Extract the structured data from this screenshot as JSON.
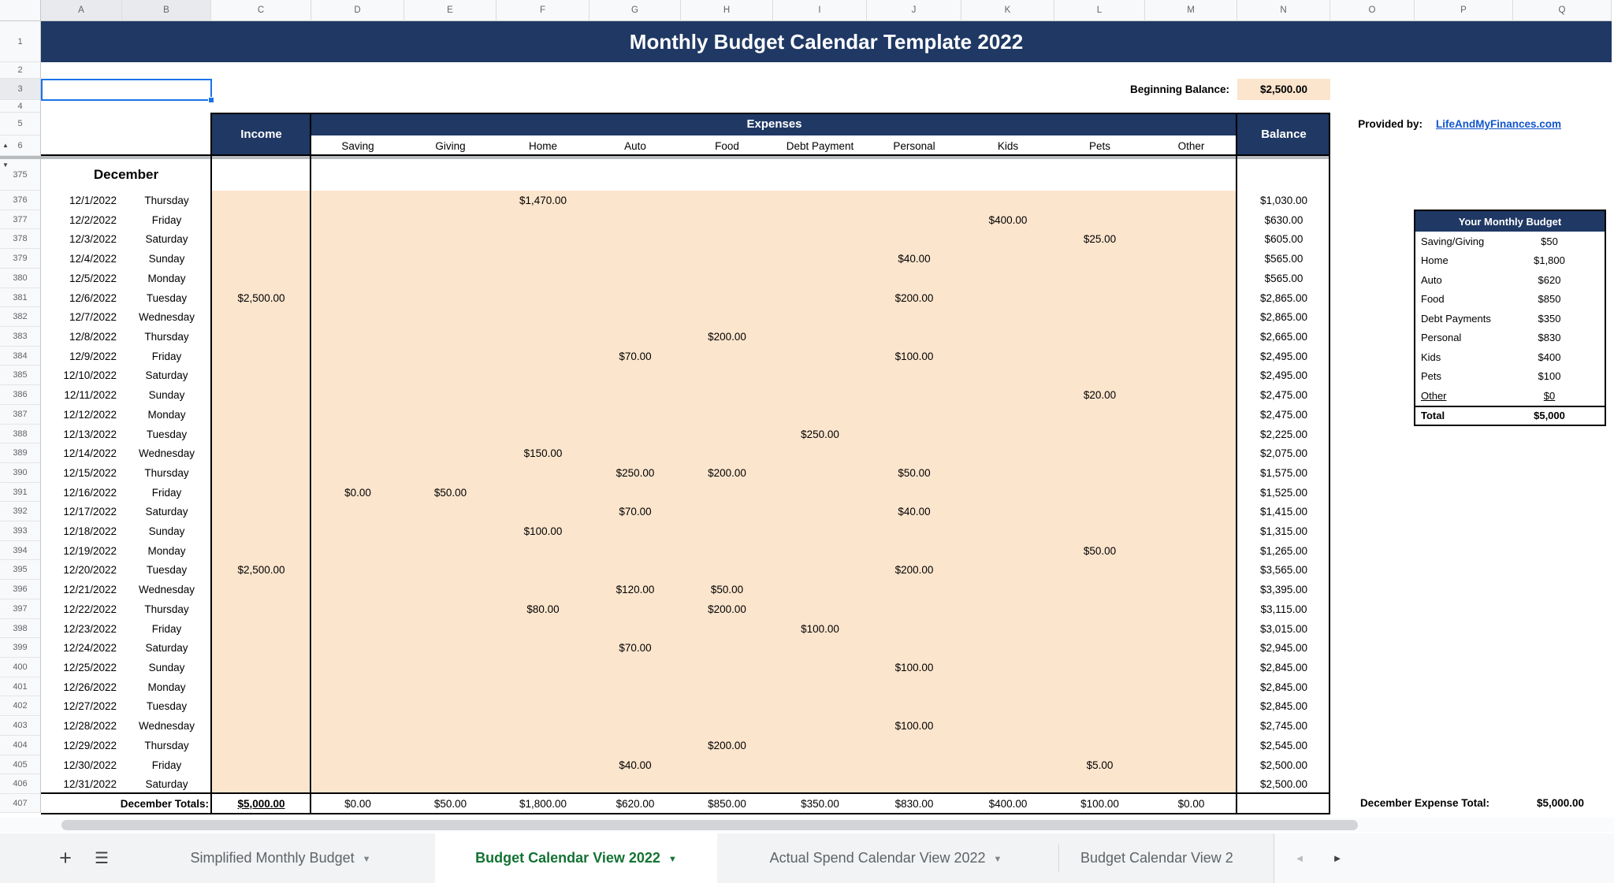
{
  "title": "Monthly Budget Calendar Template 2022",
  "column_letters": [
    "A",
    "B",
    "C",
    "D",
    "E",
    "F",
    "G",
    "H",
    "I",
    "J",
    "K",
    "L",
    "M",
    "N",
    "O",
    "P",
    "Q"
  ],
  "gutter_top_rows": [
    "1",
    "2",
    "3",
    "4",
    "5",
    "6"
  ],
  "month_row_number": "375",
  "totals_row_number": "407",
  "beginning_balance": {
    "label": "Beginning Balance:",
    "value": "$2,500.00"
  },
  "headers": {
    "income": "Income",
    "expenses": "Expenses",
    "balance": "Balance",
    "expense_categories": [
      "Saving",
      "Giving",
      "Home",
      "Auto",
      "Food",
      "Debt Payment",
      "Personal",
      "Kids",
      "Pets",
      "Other"
    ]
  },
  "month_label": "December",
  "data_rows": [
    [
      "376",
      "12/1/2022",
      "Thursday",
      "",
      "",
      "",
      "$1,470.00",
      "",
      "",
      "",
      "",
      "",
      "",
      "",
      "$1,030.00"
    ],
    [
      "377",
      "12/2/2022",
      "Friday",
      "",
      "",
      "",
      "",
      "",
      "",
      "",
      "",
      "$400.00",
      "",
      "",
      "$630.00"
    ],
    [
      "378",
      "12/3/2022",
      "Saturday",
      "",
      "",
      "",
      "",
      "",
      "",
      "",
      "",
      "",
      "$25.00",
      "",
      "$605.00"
    ],
    [
      "379",
      "12/4/2022",
      "Sunday",
      "",
      "",
      "",
      "",
      "",
      "",
      "",
      "$40.00",
      "",
      "",
      "",
      "$565.00"
    ],
    [
      "380",
      "12/5/2022",
      "Monday",
      "",
      "",
      "",
      "",
      "",
      "",
      "",
      "",
      "",
      "",
      "",
      "$565.00"
    ],
    [
      "381",
      "12/6/2022",
      "Tuesday",
      "$2,500.00",
      "",
      "",
      "",
      "",
      "",
      "",
      "$200.00",
      "",
      "",
      "",
      "$2,865.00"
    ],
    [
      "382",
      "12/7/2022",
      "Wednesday",
      "",
      "",
      "",
      "",
      "",
      "",
      "",
      "",
      "",
      "",
      "",
      "$2,865.00"
    ],
    [
      "383",
      "12/8/2022",
      "Thursday",
      "",
      "",
      "",
      "",
      "",
      "$200.00",
      "",
      "",
      "",
      "",
      "",
      "$2,665.00"
    ],
    [
      "384",
      "12/9/2022",
      "Friday",
      "",
      "",
      "",
      "",
      "$70.00",
      "",
      "",
      "$100.00",
      "",
      "",
      "",
      "$2,495.00"
    ],
    [
      "385",
      "12/10/2022",
      "Saturday",
      "",
      "",
      "",
      "",
      "",
      "",
      "",
      "",
      "",
      "",
      "",
      "$2,495.00"
    ],
    [
      "386",
      "12/11/2022",
      "Sunday",
      "",
      "",
      "",
      "",
      "",
      "",
      "",
      "",
      "",
      "$20.00",
      "",
      "$2,475.00"
    ],
    [
      "387",
      "12/12/2022",
      "Monday",
      "",
      "",
      "",
      "",
      "",
      "",
      "",
      "",
      "",
      "",
      "",
      "$2,475.00"
    ],
    [
      "388",
      "12/13/2022",
      "Tuesday",
      "",
      "",
      "",
      "",
      "",
      "",
      "$250.00",
      "",
      "",
      "",
      "",
      "$2,225.00"
    ],
    [
      "389",
      "12/14/2022",
      "Wednesday",
      "",
      "",
      "",
      "$150.00",
      "",
      "",
      "",
      "",
      "",
      "",
      "",
      "$2,075.00"
    ],
    [
      "390",
      "12/15/2022",
      "Thursday",
      "",
      "",
      "",
      "",
      "$250.00",
      "$200.00",
      "",
      "$50.00",
      "",
      "",
      "",
      "$1,575.00"
    ],
    [
      "391",
      "12/16/2022",
      "Friday",
      "",
      "$0.00",
      "$50.00",
      "",
      "",
      "",
      "",
      "",
      "",
      "",
      "",
      "$1,525.00"
    ],
    [
      "392",
      "12/17/2022",
      "Saturday",
      "",
      "",
      "",
      "",
      "$70.00",
      "",
      "",
      "$40.00",
      "",
      "",
      "",
      "$1,415.00"
    ],
    [
      "393",
      "12/18/2022",
      "Sunday",
      "",
      "",
      "",
      "$100.00",
      "",
      "",
      "",
      "",
      "",
      "",
      "",
      "$1,315.00"
    ],
    [
      "394",
      "12/19/2022",
      "Monday",
      "",
      "",
      "",
      "",
      "",
      "",
      "",
      "",
      "",
      "$50.00",
      "",
      "$1,265.00"
    ],
    [
      "395",
      "12/20/2022",
      "Tuesday",
      "$2,500.00",
      "",
      "",
      "",
      "",
      "",
      "",
      "$200.00",
      "",
      "",
      "",
      "$3,565.00"
    ],
    [
      "396",
      "12/21/2022",
      "Wednesday",
      "",
      "",
      "",
      "",
      "$120.00",
      "$50.00",
      "",
      "",
      "",
      "",
      "",
      "$3,395.00"
    ],
    [
      "397",
      "12/22/2022",
      "Thursday",
      "",
      "",
      "",
      "$80.00",
      "",
      "$200.00",
      "",
      "",
      "",
      "",
      "",
      "$3,115.00"
    ],
    [
      "398",
      "12/23/2022",
      "Friday",
      "",
      "",
      "",
      "",
      "",
      "",
      "$100.00",
      "",
      "",
      "",
      "",
      "$3,015.00"
    ],
    [
      "399",
      "12/24/2022",
      "Saturday",
      "",
      "",
      "",
      "",
      "$70.00",
      "",
      "",
      "",
      "",
      "",
      "",
      "$2,945.00"
    ],
    [
      "400",
      "12/25/2022",
      "Sunday",
      "",
      "",
      "",
      "",
      "",
      "",
      "",
      "$100.00",
      "",
      "",
      "",
      "$2,845.00"
    ],
    [
      "401",
      "12/26/2022",
      "Monday",
      "",
      "",
      "",
      "",
      "",
      "",
      "",
      "",
      "",
      "",
      "",
      "$2,845.00"
    ],
    [
      "402",
      "12/27/2022",
      "Tuesday",
      "",
      "",
      "",
      "",
      "",
      "",
      "",
      "",
      "",
      "",
      "",
      "$2,845.00"
    ],
    [
      "403",
      "12/28/2022",
      "Wednesday",
      "",
      "",
      "",
      "",
      "",
      "",
      "",
      "$100.00",
      "",
      "",
      "",
      "$2,745.00"
    ],
    [
      "404",
      "12/29/2022",
      "Thursday",
      "",
      "",
      "",
      "",
      "",
      "$200.00",
      "",
      "",
      "",
      "",
      "",
      "$2,545.00"
    ],
    [
      "405",
      "12/30/2022",
      "Friday",
      "",
      "",
      "",
      "",
      "$40.00",
      "",
      "",
      "",
      "",
      "$5.00",
      "",
      "$2,500.00"
    ],
    [
      "406",
      "12/31/2022",
      "Saturday",
      "",
      "",
      "",
      "",
      "",
      "",
      "",
      "",
      "",
      "",
      "",
      "$2,500.00"
    ]
  ],
  "totals": {
    "label": "December Totals:",
    "values": [
      "$5,000.00",
      "$0.00",
      "$50.00",
      "$1,800.00",
      "$620.00",
      "$850.00",
      "$350.00",
      "$830.00",
      "$400.00",
      "$100.00",
      "$0.00",
      ""
    ]
  },
  "expense_total": {
    "label": "December Expense Total:",
    "value": "$5,000.00"
  },
  "provided_by": {
    "label": "Provided by:",
    "link": "LifeAndMyFinances.com"
  },
  "budget_panel": {
    "title": "Your Monthly Budget",
    "items": [
      {
        "label": "Saving/Giving",
        "value": "$50"
      },
      {
        "label": "Home",
        "value": "$1,800"
      },
      {
        "label": "Auto",
        "value": "$620"
      },
      {
        "label": "Food",
        "value": "$850"
      },
      {
        "label": "Debt Payments",
        "value": "$350"
      },
      {
        "label": "Personal",
        "value": "$830"
      },
      {
        "label": "Kids",
        "value": "$400"
      },
      {
        "label": "Pets",
        "value": "$100"
      },
      {
        "label": "Other",
        "value": "$0",
        "underline": true
      }
    ],
    "total": {
      "label": "Total",
      "value": "$5,000"
    }
  },
  "sheet_bar": {
    "add_icon": "+",
    "menu_icon": "☰",
    "tabs": [
      {
        "label": "Simplified Monthly Budget",
        "active": false
      },
      {
        "label": "Budget Calendar View 2022",
        "active": true
      },
      {
        "label": "Actual Spend Calendar View 2022",
        "active": false
      },
      {
        "label": "Budget Calendar View 2",
        "active": false,
        "truncated": true
      }
    ],
    "nav_left": "◄",
    "nav_right": "►"
  },
  "colors": {
    "navy": "#1f3864",
    "peach": "#fce5cd",
    "selection_blue": "#1a73e8",
    "link_blue": "#1155cc",
    "tab_active_green": "#137333"
  }
}
